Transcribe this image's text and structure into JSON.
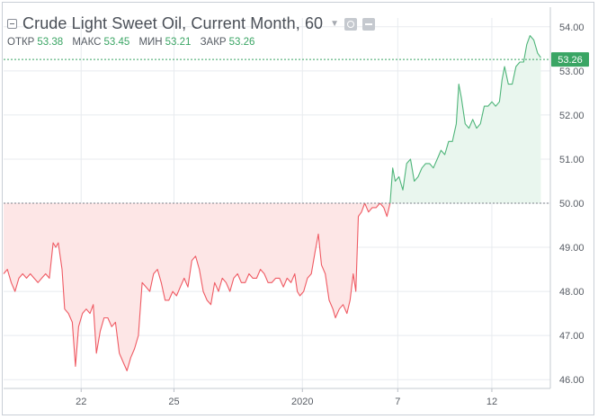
{
  "header": {
    "title": "Crude Light Sweet Oil, Current Month, 60",
    "dropdown_icon": "chevron-down-icon",
    "settings_icon": "gear-icon",
    "hide_icon": "eye-icon"
  },
  "ohlc": [
    {
      "label": "ОТКР",
      "value": "53.38"
    },
    {
      "label": "МАКС",
      "value": "53.45"
    },
    {
      "label": "МИН",
      "value": "53.21"
    },
    {
      "label": "ЗАКР",
      "value": "53.26"
    }
  ],
  "colors": {
    "up_line": "#4fb57a",
    "up_fill": "#e9f6ee",
    "down_line": "#ef5a63",
    "down_fill": "#fde6e6",
    "price_tag": "#3aa564",
    "grid": "#e8ebef",
    "axis_text": "#575c64"
  },
  "chart_data": {
    "type": "area",
    "title": "Crude Light Sweet Oil, Current Month, 60",
    "baseline": 50.0,
    "last_price": "53.26",
    "ylim": [
      45.8,
      54.2
    ],
    "y_ticks": [
      "46.00",
      "47.00",
      "48.00",
      "49.00",
      "50.00",
      "51.00",
      "52.00",
      "53.00",
      "54.00"
    ],
    "x_ticks": [
      {
        "label": "22",
        "at": 12.2
      },
      {
        "label": "25",
        "at": 26.8
      },
      {
        "label": "2020",
        "at": 47.0
      },
      {
        "label": "7",
        "at": 62.0
      },
      {
        "label": "12",
        "at": 76.8
      }
    ],
    "xlim": [
      0,
      86
    ],
    "series": [
      {
        "values": [
          [
            0,
            48.4
          ],
          [
            0.6,
            48.5
          ],
          [
            1.2,
            48.2
          ],
          [
            1.8,
            48.0
          ],
          [
            2.4,
            48.3
          ],
          [
            3,
            48.4
          ],
          [
            3.6,
            48.3
          ],
          [
            4.2,
            48.4
          ],
          [
            4.8,
            48.3
          ],
          [
            5.4,
            48.2
          ],
          [
            6,
            48.3
          ],
          [
            6.6,
            48.4
          ],
          [
            7.2,
            48.3
          ],
          [
            7.8,
            49.1
          ],
          [
            8.2,
            49.0
          ],
          [
            8.6,
            49.1
          ],
          [
            9.2,
            48.5
          ],
          [
            9.6,
            47.6
          ],
          [
            10.2,
            47.5
          ],
          [
            10.8,
            47.3
          ],
          [
            11.3,
            46.3
          ],
          [
            11.8,
            47.2
          ],
          [
            12.4,
            47.5
          ],
          [
            13,
            47.6
          ],
          [
            13.6,
            47.5
          ],
          [
            14.1,
            47.7
          ],
          [
            14.6,
            46.6
          ],
          [
            15.2,
            47.1
          ],
          [
            15.8,
            47.4
          ],
          [
            16.4,
            47.4
          ],
          [
            17,
            47.2
          ],
          [
            17.6,
            47.3
          ],
          [
            18.2,
            46.6
          ],
          [
            18.8,
            46.4
          ],
          [
            19.4,
            46.2
          ],
          [
            20,
            46.5
          ],
          [
            20.6,
            46.7
          ],
          [
            21.2,
            47.0
          ],
          [
            21.8,
            48.2
          ],
          [
            22.4,
            48.1
          ],
          [
            23,
            48.0
          ],
          [
            23.6,
            48.4
          ],
          [
            24.2,
            48.5
          ],
          [
            24.8,
            48.2
          ],
          [
            25.4,
            47.8
          ],
          [
            26,
            47.8
          ],
          [
            26.6,
            48.0
          ],
          [
            27.2,
            47.9
          ],
          [
            27.8,
            48.1
          ],
          [
            28.4,
            48.3
          ],
          [
            29,
            48.1
          ],
          [
            29.6,
            48.7
          ],
          [
            30.2,
            48.8
          ],
          [
            30.8,
            48.5
          ],
          [
            31.4,
            48.0
          ],
          [
            32,
            47.8
          ],
          [
            32.6,
            47.7
          ],
          [
            33.2,
            48.2
          ],
          [
            33.8,
            48.0
          ],
          [
            34.4,
            48.3
          ],
          [
            35,
            48.2
          ],
          [
            35.6,
            48.0
          ],
          [
            36.2,
            48.3
          ],
          [
            36.8,
            48.4
          ],
          [
            37.4,
            48.2
          ],
          [
            38,
            48.2
          ],
          [
            38.6,
            48.4
          ],
          [
            39.2,
            48.3
          ],
          [
            39.8,
            48.3
          ],
          [
            40.4,
            48.5
          ],
          [
            41,
            48.4
          ],
          [
            41.6,
            48.2
          ],
          [
            42.2,
            48.2
          ],
          [
            42.8,
            48.3
          ],
          [
            43.4,
            48.3
          ],
          [
            44,
            48.1
          ],
          [
            44.6,
            48.3
          ],
          [
            45.2,
            48.2
          ],
          [
            45.8,
            48.4
          ],
          [
            46.2,
            48.0
          ],
          [
            46.6,
            47.9
          ],
          [
            47.2,
            48.0
          ],
          [
            47.8,
            48.3
          ],
          [
            48.4,
            48.4
          ],
          [
            49,
            48.9
          ],
          [
            49.5,
            49.3
          ],
          [
            50,
            48.6
          ],
          [
            50.6,
            48.4
          ],
          [
            51.2,
            47.8
          ],
          [
            51.8,
            47.6
          ],
          [
            52.2,
            47.4
          ],
          [
            52.8,
            47.6
          ],
          [
            53.4,
            47.7
          ],
          [
            54,
            47.5
          ],
          [
            54.5,
            47.8
          ],
          [
            55,
            48.4
          ],
          [
            55.4,
            48.0
          ],
          [
            55.8,
            49.7
          ],
          [
            56.3,
            49.8
          ],
          [
            56.8,
            50.0
          ],
          [
            57.4,
            49.8
          ],
          [
            58,
            49.9
          ],
          [
            58.6,
            49.9
          ],
          [
            59.2,
            50.0
          ],
          [
            59.8,
            49.9
          ],
          [
            60.3,
            49.7
          ],
          [
            60.8,
            50.0
          ],
          [
            61.2,
            50.8
          ],
          [
            61.6,
            50.5
          ],
          [
            62.2,
            50.6
          ],
          [
            62.8,
            50.3
          ],
          [
            63.4,
            50.9
          ],
          [
            64,
            51.0
          ],
          [
            64.6,
            50.5
          ],
          [
            65.2,
            50.6
          ],
          [
            65.8,
            50.8
          ],
          [
            66.4,
            50.9
          ],
          [
            67,
            50.9
          ],
          [
            67.6,
            50.8
          ],
          [
            68.2,
            51.0
          ],
          [
            68.8,
            51.2
          ],
          [
            69.4,
            51.1
          ],
          [
            70,
            51.4
          ],
          [
            70.6,
            51.4
          ],
          [
            71.2,
            51.8
          ],
          [
            71.6,
            52.7
          ],
          [
            72,
            52.4
          ],
          [
            72.6,
            51.8
          ],
          [
            73.2,
            51.7
          ],
          [
            73.8,
            51.9
          ],
          [
            74.4,
            51.7
          ],
          [
            75,
            51.8
          ],
          [
            75.6,
            52.2
          ],
          [
            76.2,
            52.2
          ],
          [
            76.8,
            52.3
          ],
          [
            77.4,
            52.2
          ],
          [
            78,
            52.3
          ],
          [
            78.4,
            52.8
          ],
          [
            78.8,
            53.1
          ],
          [
            79.4,
            52.7
          ],
          [
            80,
            52.7
          ],
          [
            80.6,
            53.1
          ],
          [
            81.2,
            53.2
          ],
          [
            81.8,
            53.2
          ],
          [
            82.3,
            53.6
          ],
          [
            82.8,
            53.8
          ],
          [
            83.4,
            53.7
          ],
          [
            84,
            53.4
          ],
          [
            84.5,
            53.3
          ]
        ]
      }
    ]
  }
}
